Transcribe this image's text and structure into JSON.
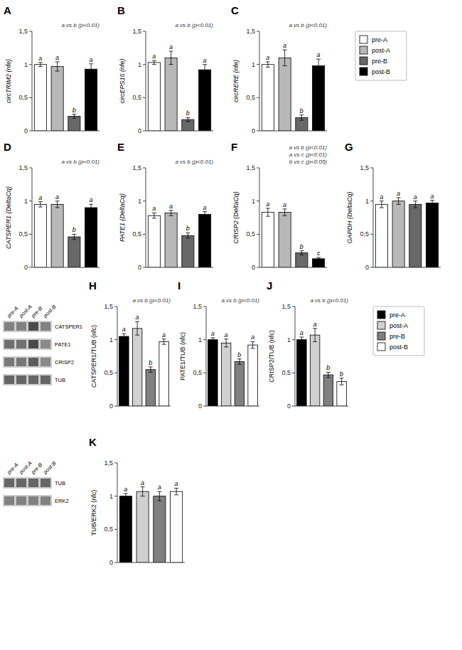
{
  "chart_data": [
    {
      "type": "bar",
      "title": "A",
      "ylabel": "circTRIM2 (nfe)",
      "annotation": "a vs b (p<0.01)",
      "categories": [
        null
      ],
      "legend": "right",
      "series": [
        {
          "name": "pre-A",
          "color": "#ffffff",
          "values": [
            1.0
          ],
          "errors": [
            0.03
          ]
        },
        {
          "name": "post-A",
          "color": "#b8b8b8",
          "values": [
            0.97
          ],
          "errors": [
            0.07
          ]
        },
        {
          "name": "pre-B",
          "color": "#686868",
          "values": [
            0.22
          ],
          "errors": [
            0.03
          ]
        },
        {
          "name": "post-B",
          "color": "#000000",
          "values": [
            0.93
          ],
          "errors": [
            0.08
          ]
        }
      ],
      "letters": [
        "a",
        "a",
        "b",
        "a"
      ],
      "ylim": [
        0,
        1.5
      ],
      "yticks": [
        0,
        {
          "value": 0.5,
          "label": "0,5"
        },
        1,
        {
          "value": 1.5,
          "label": "1,5"
        }
      ]
    },
    {
      "type": "bar",
      "title": "B",
      "ylabel": "circEPS15 (nfe)",
      "annotation": "a vs b (p<0.01)",
      "categories": [
        null
      ],
      "series": [
        {
          "name": "pre-A",
          "color": "#ffffff",
          "values": [
            1.03
          ],
          "errors": [
            0.03
          ]
        },
        {
          "name": "post-A",
          "color": "#b8b8b8",
          "values": [
            1.1
          ],
          "errors": [
            0.1
          ]
        },
        {
          "name": "pre-B",
          "color": "#686868",
          "values": [
            0.17
          ],
          "errors": [
            0.03
          ]
        },
        {
          "name": "post-B",
          "color": "#000000",
          "values": [
            0.92
          ],
          "errors": [
            0.08
          ]
        }
      ],
      "letters": [
        "a",
        "a",
        "b",
        "a"
      ],
      "ylim": [
        0,
        1.5
      ],
      "yticks": [
        0,
        {
          "value": 0.5,
          "label": "0,5"
        },
        1,
        {
          "value": 1.5,
          "label": "1,5"
        }
      ]
    },
    {
      "type": "bar",
      "title": "C",
      "ylabel": "circRERE (nfe)",
      "annotation": "a vs b (p<0.01)",
      "categories": [
        null
      ],
      "series": [
        {
          "name": "pre-A",
          "color": "#ffffff",
          "values": [
            1.0
          ],
          "errors": [
            0.04
          ]
        },
        {
          "name": "post-A",
          "color": "#b8b8b8",
          "values": [
            1.1
          ],
          "errors": [
            0.12
          ]
        },
        {
          "name": "pre-B",
          "color": "#686868",
          "values": [
            0.2
          ],
          "errors": [
            0.04
          ]
        },
        {
          "name": "post-B",
          "color": "#000000",
          "values": [
            0.98
          ],
          "errors": [
            0.1
          ]
        }
      ],
      "letters": [
        "a",
        "a",
        "b",
        "a"
      ],
      "ylim": [
        0,
        1.5
      ],
      "yticks": [
        0,
        {
          "value": 0.5,
          "label": "0,5"
        },
        1,
        {
          "value": 1.5,
          "label": "1,5"
        }
      ]
    },
    {
      "type": "bar",
      "title": "D",
      "ylabel": "CATSPER1 (DeltaCq)",
      "annotation": "a vs b (p<0.01)",
      "categories": [
        null
      ],
      "series": [
        {
          "name": "pre-A",
          "color": "#ffffff",
          "values": [
            0.95
          ],
          "errors": [
            0.04
          ]
        },
        {
          "name": "post-A",
          "color": "#b8b8b8",
          "values": [
            0.95
          ],
          "errors": [
            0.05
          ]
        },
        {
          "name": "pre-B",
          "color": "#686868",
          "values": [
            0.46
          ],
          "errors": [
            0.04
          ]
        },
        {
          "name": "post-B",
          "color": "#000000",
          "values": [
            0.9
          ],
          "errors": [
            0.05
          ]
        }
      ],
      "letters": [
        "a",
        "a",
        "b",
        "a"
      ],
      "ylim": [
        0,
        1.5
      ],
      "yticks": [
        0,
        {
          "value": 0.5,
          "label": "0,5"
        },
        1,
        {
          "value": 1.5,
          "label": "1,5"
        }
      ]
    },
    {
      "type": "bar",
      "title": "E",
      "ylabel": "PATE1 (DeltaCq)",
      "annotation": "a vs b (p<0.01)",
      "categories": [
        null
      ],
      "series": [
        {
          "name": "pre-A",
          "color": "#ffffff",
          "values": [
            0.78
          ],
          "errors": [
            0.04
          ]
        },
        {
          "name": "post-A",
          "color": "#b8b8b8",
          "values": [
            0.82
          ],
          "errors": [
            0.04
          ]
        },
        {
          "name": "pre-B",
          "color": "#686868",
          "values": [
            0.48
          ],
          "errors": [
            0.04
          ]
        },
        {
          "name": "post-B",
          "color": "#000000",
          "values": [
            0.8
          ],
          "errors": [
            0.04
          ]
        }
      ],
      "letters": [
        "a",
        "a",
        "b",
        "a"
      ],
      "ylim": [
        0,
        1.5
      ],
      "yticks": [
        0,
        {
          "value": 0.5,
          "label": "0,5"
        },
        1,
        {
          "value": 1.5,
          "label": "1,5"
        }
      ]
    },
    {
      "type": "bar",
      "title": "F",
      "ylabel": "CRISP2 (DeltaCq)",
      "annotation": "a vs b (p<0.01)\na vs c (p<0.01)\nb vs c (p<0.05)",
      "categories": [
        null
      ],
      "series": [
        {
          "name": "pre-A",
          "color": "#ffffff",
          "values": [
            0.83
          ],
          "errors": [
            0.06
          ]
        },
        {
          "name": "post-A",
          "color": "#b8b8b8",
          "values": [
            0.83
          ],
          "errors": [
            0.05
          ]
        },
        {
          "name": "pre-B",
          "color": "#686868",
          "values": [
            0.22
          ],
          "errors": [
            0.03
          ]
        },
        {
          "name": "post-B",
          "color": "#000000",
          "values": [
            0.13
          ],
          "errors": [
            0.02
          ]
        }
      ],
      "letters": [
        "a",
        "a",
        "b",
        "c"
      ],
      "ylim": [
        0,
        1.5
      ],
      "yticks": [
        0,
        {
          "value": 0.5,
          "label": "0,5"
        },
        1,
        {
          "value": 1.5,
          "label": "1,5"
        }
      ]
    },
    {
      "type": "bar",
      "title": "G",
      "ylabel": "GAPDH (DeltaCq)",
      "categories": [
        null
      ],
      "series": [
        {
          "name": "pre-A",
          "color": "#ffffff",
          "values": [
            0.95
          ],
          "errors": [
            0.05
          ]
        },
        {
          "name": "post-A",
          "color": "#b8b8b8",
          "values": [
            1.0
          ],
          "errors": [
            0.05
          ]
        },
        {
          "name": "pre-B",
          "color": "#686868",
          "values": [
            0.95
          ],
          "errors": [
            0.05
          ]
        },
        {
          "name": "post-B",
          "color": "#000000",
          "values": [
            0.97
          ],
          "errors": [
            0.04
          ]
        }
      ],
      "letters": [
        "a",
        "a",
        "a",
        "a"
      ],
      "ylim": [
        0,
        1.5
      ],
      "yticks": [
        0,
        {
          "value": 0.5,
          "label": "0,5"
        },
        1,
        {
          "value": 1.5,
          "label": "1,5"
        }
      ]
    },
    {
      "type": "heatmap",
      "categories": [
        "pre-A",
        "post-A",
        "pre-B",
        "post-B"
      ],
      "rows": [
        "CATSPER1",
        "PATE1",
        "CRISP2",
        "TUB"
      ],
      "cells": [
        [
          0.45,
          0.45,
          0.75,
          0.45
        ],
        [
          0.55,
          0.55,
          0.75,
          0.4
        ],
        [
          0.5,
          0.5,
          0.65,
          0.4
        ],
        [
          0.6,
          0.6,
          0.6,
          0.6
        ]
      ]
    },
    {
      "type": "bar",
      "title": "H",
      "ylabel": "CATSPER1/TUB (nfc)",
      "annotation": "a vs b (p<0.01)",
      "categories": [
        null
      ],
      "legend": "right",
      "series": [
        {
          "name": "pre-A",
          "color": "#000000",
          "values": [
            1.05
          ],
          "errors": [
            0.04
          ]
        },
        {
          "name": "post-A",
          "color": "#d0d0d0",
          "values": [
            1.17
          ],
          "errors": [
            0.1
          ]
        },
        {
          "name": "pre-B",
          "color": "#808080",
          "values": [
            0.55
          ],
          "errors": [
            0.04
          ]
        },
        {
          "name": "post-B",
          "color": "#ffffff",
          "values": [
            0.97
          ],
          "errors": [
            0.04
          ]
        }
      ],
      "letters": [
        "a",
        "a",
        "b",
        "a"
      ],
      "ylim": [
        0,
        1.5
      ],
      "yticks": [
        0,
        {
          "value": 0.5,
          "label": "0,5"
        },
        1,
        {
          "value": 1.5,
          "label": "1,5"
        }
      ]
    },
    {
      "type": "bar",
      "title": "I",
      "ylabel": "PATE1/TUB (nfc)",
      "annotation": "a vs b (p<0.01)",
      "categories": [
        null
      ],
      "series": [
        {
          "name": "pre-A",
          "color": "#000000",
          "values": [
            1.0
          ],
          "errors": [
            0.03
          ]
        },
        {
          "name": "post-A",
          "color": "#d0d0d0",
          "values": [
            0.95
          ],
          "errors": [
            0.06
          ]
        },
        {
          "name": "pre-B",
          "color": "#808080",
          "values": [
            0.67
          ],
          "errors": [
            0.04
          ]
        },
        {
          "name": "post-B",
          "color": "#ffffff",
          "values": [
            0.92
          ],
          "errors": [
            0.05
          ]
        }
      ],
      "letters": [
        "a",
        "a",
        "b",
        "a"
      ],
      "ylim": [
        0,
        1.5
      ],
      "yticks": [
        0,
        {
          "value": 0.5,
          "label": "0,5"
        },
        1,
        {
          "value": 1.5,
          "label": "1,5"
        }
      ]
    },
    {
      "type": "bar",
      "title": "J",
      "ylabel": "CRISP2/TUB (nfc)",
      "annotation": "a vs b (p<0.01)",
      "categories": [
        null
      ],
      "series": [
        {
          "name": "pre-A",
          "color": "#000000",
          "values": [
            1.0
          ],
          "errors": [
            0.04
          ]
        },
        {
          "name": "post-A",
          "color": "#d0d0d0",
          "values": [
            1.07
          ],
          "errors": [
            0.1
          ]
        },
        {
          "name": "pre-B",
          "color": "#808080",
          "values": [
            0.47
          ],
          "errors": [
            0.04
          ]
        },
        {
          "name": "post-B",
          "color": "#ffffff",
          "values": [
            0.37
          ],
          "errors": [
            0.05
          ]
        }
      ],
      "letters": [
        "a",
        "a",
        "b",
        "b"
      ],
      "ylim": [
        0,
        1.5
      ],
      "yticks": [
        0,
        {
          "value": 0.5,
          "label": "0,5"
        },
        1,
        {
          "value": 1.5,
          "label": "1,5"
        }
      ]
    },
    {
      "type": "heatmap",
      "categories": [
        "pre-A",
        "post-A",
        "pre-B",
        "post-B"
      ],
      "rows": [
        "TUB",
        "ERK2"
      ],
      "cells": [
        [
          0.6,
          0.6,
          0.6,
          0.6
        ],
        [
          0.45,
          0.45,
          0.45,
          0.45
        ]
      ]
    },
    {
      "type": "bar",
      "title": "K",
      "ylabel": "TUB/ERK2 (nfc)",
      "categories": [
        null
      ],
      "series": [
        {
          "name": "pre-A",
          "color": "#000000",
          "values": [
            1.0
          ],
          "errors": [
            0.04
          ]
        },
        {
          "name": "post-A",
          "color": "#d0d0d0",
          "values": [
            1.07
          ],
          "errors": [
            0.07
          ]
        },
        {
          "name": "pre-B",
          "color": "#808080",
          "values": [
            1.0
          ],
          "errors": [
            0.07
          ]
        },
        {
          "name": "post-B",
          "color": "#ffffff",
          "values": [
            1.07
          ],
          "errors": [
            0.05
          ]
        }
      ],
      "letters": [
        "a",
        "a",
        "a",
        "a"
      ],
      "ylim": [
        0,
        1.5
      ],
      "yticks": [
        0,
        {
          "value": 0.5,
          "label": "0,5"
        },
        1,
        {
          "value": 1.5,
          "label": "1,5"
        }
      ]
    }
  ]
}
